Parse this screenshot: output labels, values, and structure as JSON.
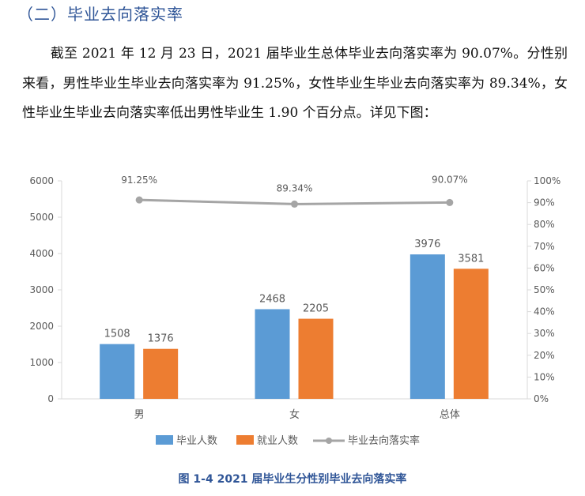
{
  "heading": "（二）毕业去向落实率",
  "paragraph": "截至 2021 年 12 月 23 日，2021 届毕业生总体毕业去向落实率为 90.07%。分性别来看，男性毕业生毕业去向落实率为 91.25%，女性毕业生毕业去向落实率为 89.34%，女性毕业生毕业去向落实率低出男性毕业生 1.90 个百分点。详见下图：",
  "caption": "图 1-4  2021 届毕业生分性别毕业去向落实率",
  "chart_data": {
    "type": "bar",
    "categories": [
      "男",
      "女",
      "总体"
    ],
    "series": [
      {
        "name": "毕业人数",
        "type": "bar",
        "axis": "left",
        "color": "#5b9bd5",
        "values": [
          1508,
          2468,
          3976
        ]
      },
      {
        "name": "就业人数",
        "type": "bar",
        "axis": "left",
        "color": "#ed7d31",
        "values": [
          1376,
          2205,
          3581
        ]
      },
      {
        "name": "毕业去向落实率",
        "type": "line",
        "axis": "right",
        "color": "#a5a5a5",
        "values": [
          91.25,
          89.34,
          90.07
        ],
        "labels": [
          "91.25%",
          "89.34%",
          "90.07%"
        ]
      }
    ],
    "left_ylim": [
      0,
      6000
    ],
    "left_ticks": [
      "0",
      "1000",
      "2000",
      "3000",
      "4000",
      "5000",
      "6000"
    ],
    "right_ylim": [
      0,
      100
    ],
    "right_ticks": [
      "0%",
      "10%",
      "20%",
      "30%",
      "40%",
      "50%",
      "60%",
      "70%",
      "80%",
      "90%",
      "100%"
    ],
    "legend": "bottom",
    "grid": false
  }
}
